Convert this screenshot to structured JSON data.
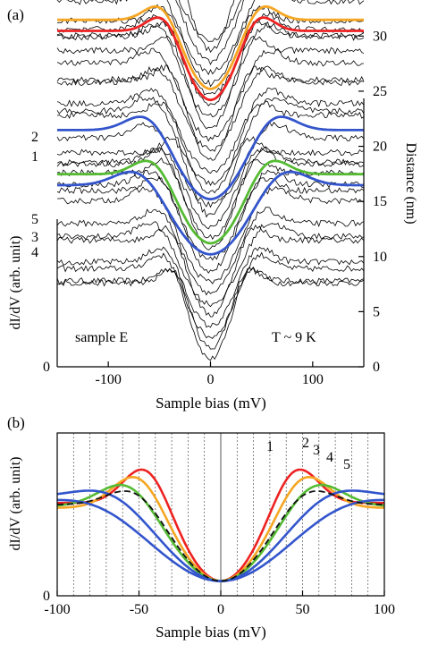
{
  "chart_data": [
    {
      "panel": "(a)",
      "type": "line",
      "xlabel": "Sample bias (mV)",
      "ylabel": "dI/dV (arb. unit)",
      "y2label": "Distance (nm)",
      "x_ticks": [
        -100,
        0,
        100
      ],
      "xlim": [
        -150,
        150
      ],
      "y_ticks": [
        0
      ],
      "y2_ticks": [
        0,
        5,
        10,
        15,
        20,
        25,
        30
      ],
      "y2lim": [
        0,
        31
      ],
      "annotations": {
        "sample": "sample E",
        "temperature": "T ~ 9 K"
      },
      "curve_labels": [
        "2",
        "1",
        "5",
        "3",
        "4"
      ],
      "spectra_stack": {
        "count": 30,
        "offset_per_curve_nm": 1.0,
        "gap_edge_mV": 45,
        "color": "#000000"
      },
      "series": [
        {
          "label": "1",
          "color": "#ee2222",
          "offset_nm": 23.5,
          "peak_mV": 45
        },
        {
          "label": "2",
          "color": "#f5a623",
          "offset_nm": 24.5,
          "peak_mV": 47
        },
        {
          "label": "3",
          "color": "#55bb33",
          "offset_nm": 10.5,
          "peak_mV": 55
        },
        {
          "label": "4",
          "color": "#3355cc",
          "offset_nm": 9.5,
          "peak_mV": 68
        },
        {
          "label": "5",
          "color": "#3355cc",
          "offset_nm": 14.5,
          "peak_mV": 60
        }
      ]
    },
    {
      "panel": "(b)",
      "type": "line",
      "xlabel": "Sample bias (mV)",
      "ylabel": "dI/dV (arb. unit)",
      "x_ticks": [
        -100,
        -50,
        0,
        50,
        100
      ],
      "xlim": [
        -100,
        100
      ],
      "y_ticks": [
        0
      ],
      "ylim": [
        0,
        1
      ],
      "grid": "vertical dotted lines every 10 mV",
      "curve_labels": [
        "1",
        "2",
        "3",
        "4",
        "5"
      ],
      "series": [
        {
          "label": "1",
          "color": "#ee2222",
          "peak_mV": 45,
          "peak_height": 0.84,
          "edge_height": 0.57
        },
        {
          "label": "2",
          "color": "#f5a623",
          "peak_mV": 50,
          "peak_height": 0.79,
          "edge_height": 0.54
        },
        {
          "label": "3",
          "color": "#55bb33",
          "peak_mV": 56,
          "peak_height": 0.74,
          "edge_height": 0.55
        },
        {
          "label": "4",
          "color": "#3355cc",
          "peak_mV": 67,
          "peak_height": 0.7,
          "edge_height": 0.61
        },
        {
          "label": "5",
          "color": "#3355cc",
          "peak_mV": 77,
          "peak_height": 0.63,
          "edge_height": 0.58
        },
        {
          "label": "",
          "color": "#111111",
          "style": "dashed",
          "peak_mV": 52,
          "peak_height": 0.7,
          "edge_height": 0.56
        }
      ]
    }
  ]
}
